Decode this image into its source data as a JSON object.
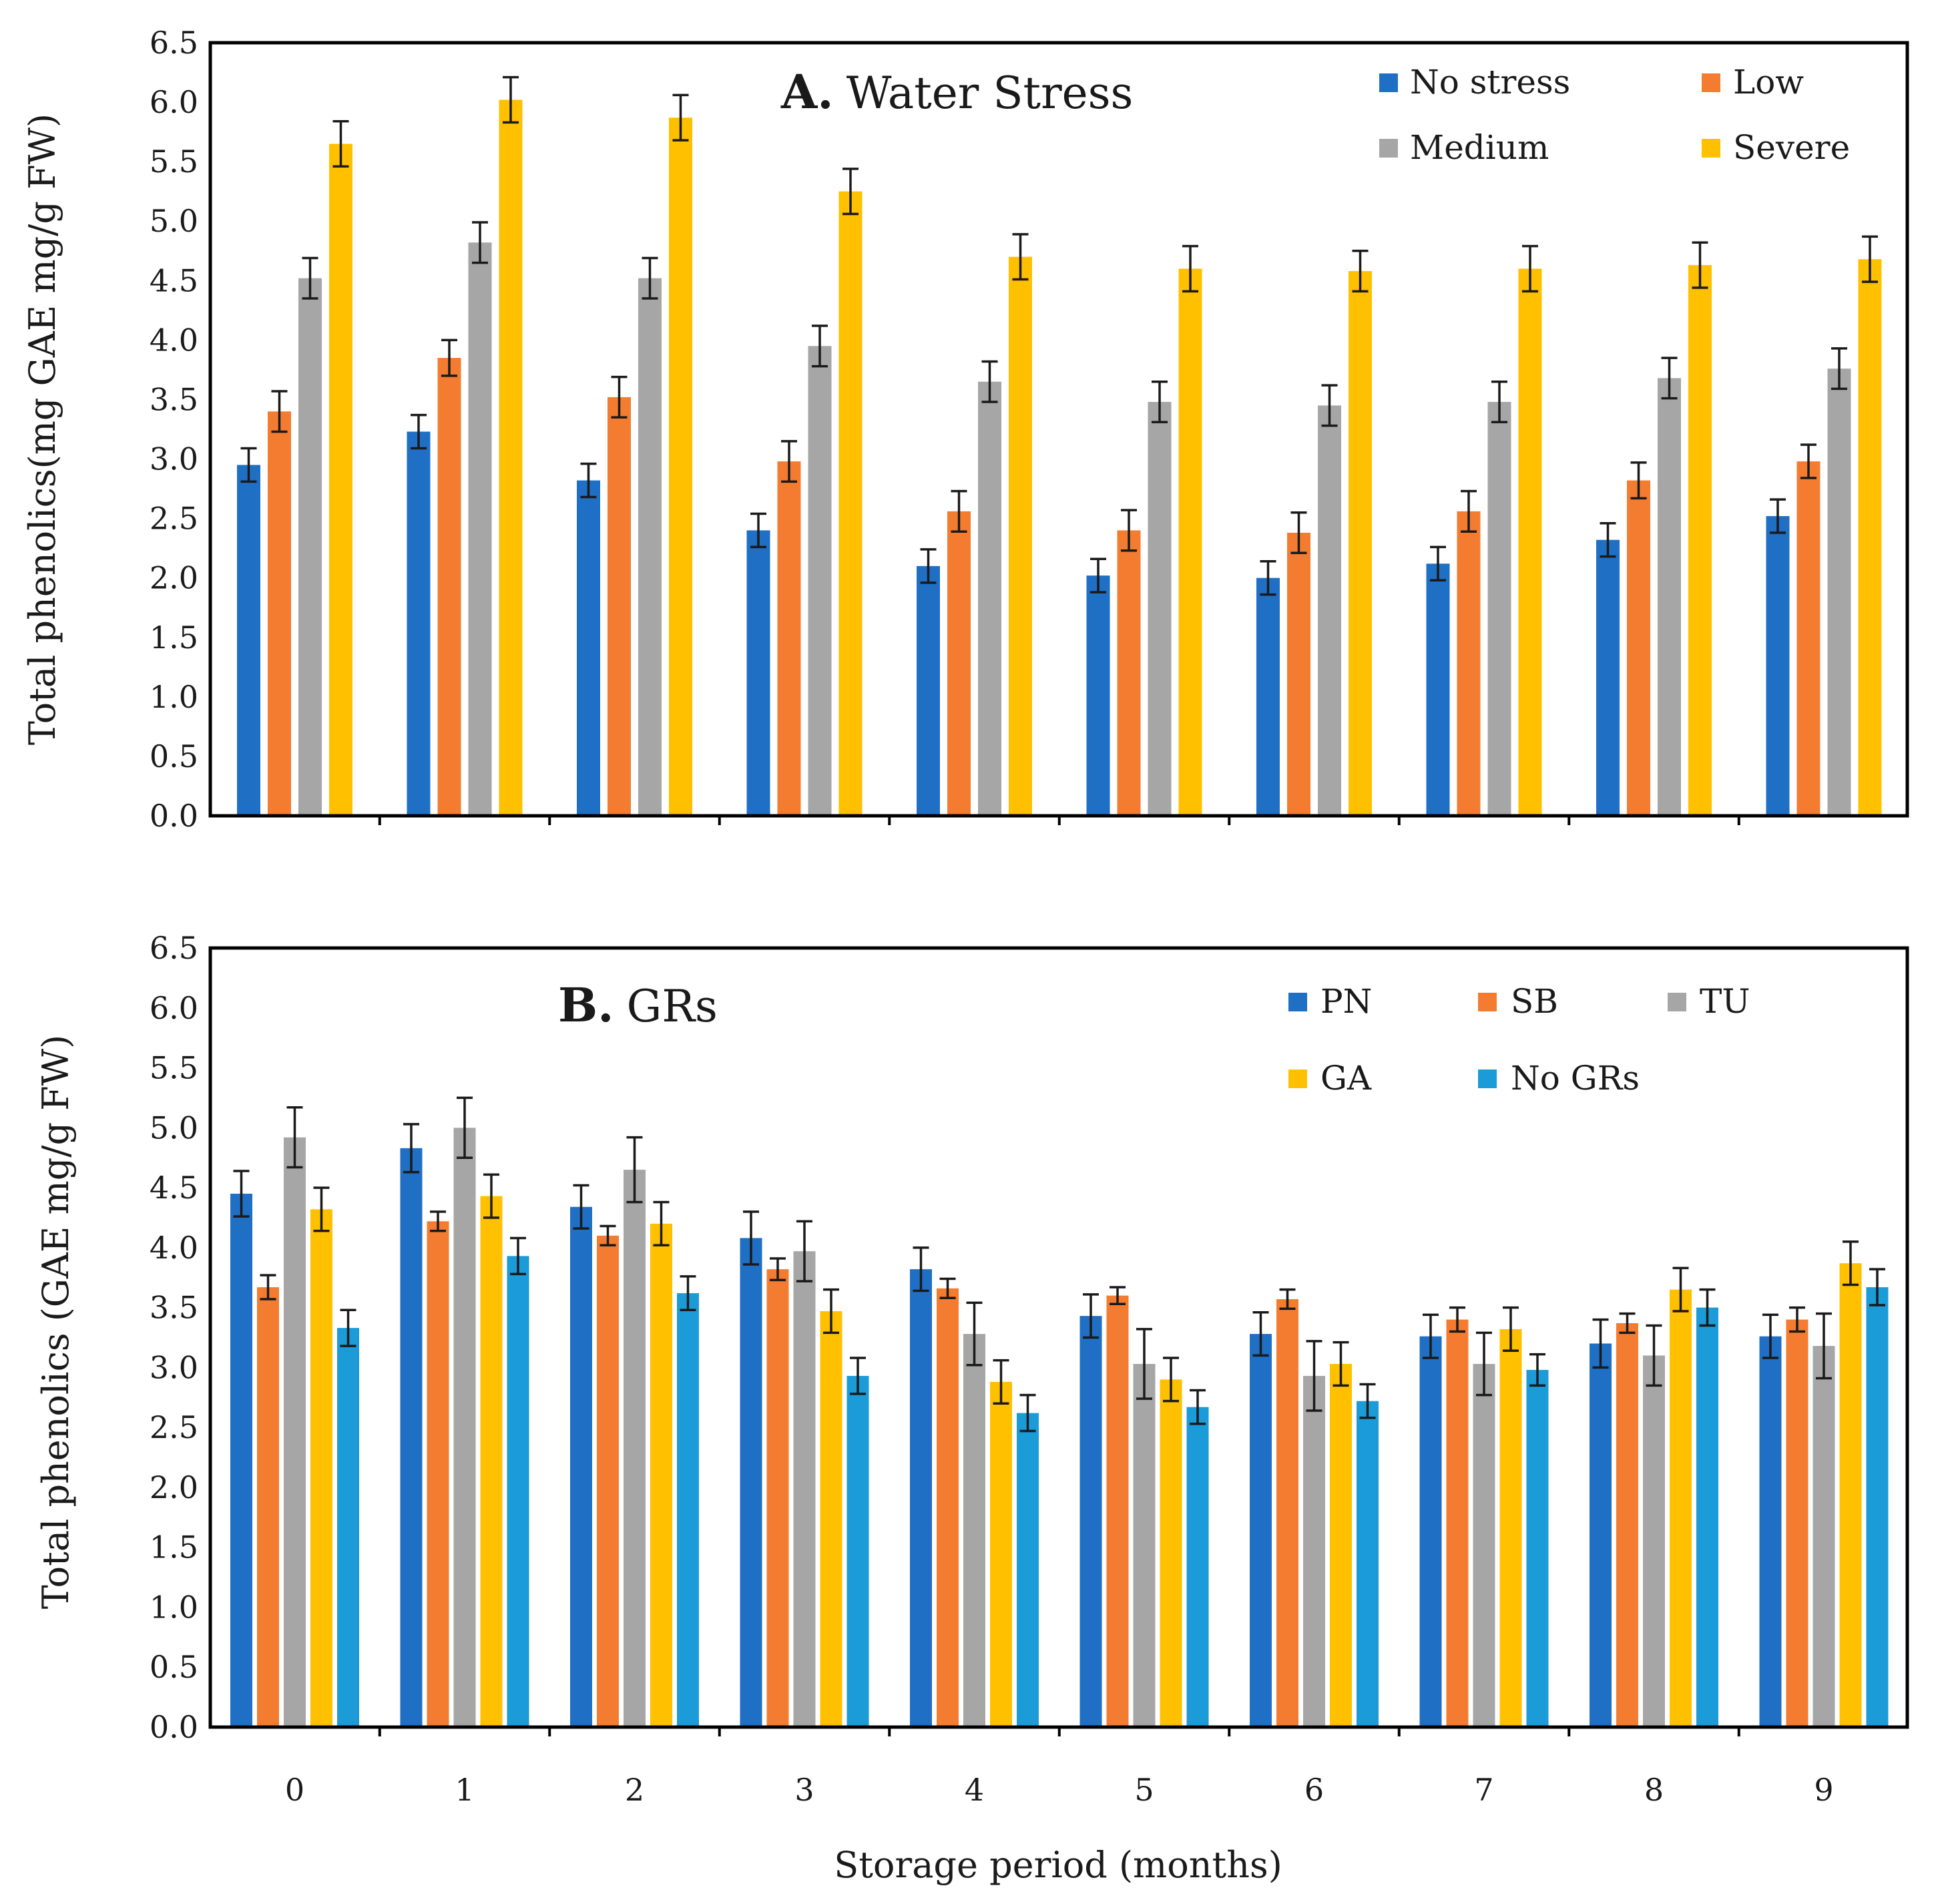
{
  "colors": {
    "No stress": "#1F6FC5",
    "Low": "#F47C30",
    "Medium": "#A6A6A6",
    "Severe": "#FFC000",
    "PN": "#1F6FC5",
    "SB": "#F47C30",
    "TU": "#A6A6A6",
    "GA": "#FFC000",
    "No GRs": "#1B9BD8"
  },
  "chart_data": [
    {
      "type": "bar",
      "panel_letter": "A.",
      "title": "Water Stress",
      "ylabel": "Total phenolics(mg GAE mg/g FW)",
      "xlabel": "",
      "ylim": [
        0,
        6.5
      ],
      "ytick_step": 0.5,
      "yticks": [
        "0.0",
        "0.5",
        "1.0",
        "1.5",
        "2.0",
        "2.5",
        "3.0",
        "3.5",
        "4.0",
        "4.5",
        "5.0",
        "5.5",
        "6.0",
        "6.5"
      ],
      "categories": [
        "0",
        "1",
        "2",
        "3",
        "4",
        "5",
        "6",
        "7",
        "8",
        "9"
      ],
      "show_x_tick_labels": false,
      "legend_position": "top-right",
      "legend_columns": 2,
      "series": [
        {
          "name": "No stress",
          "values": [
            2.95,
            3.23,
            2.82,
            2.4,
            2.1,
            2.02,
            2.0,
            2.12,
            2.32,
            2.52
          ],
          "errors": [
            0.14,
            0.14,
            0.14,
            0.14,
            0.14,
            0.14,
            0.14,
            0.14,
            0.14,
            0.14
          ]
        },
        {
          "name": "Low",
          "values": [
            3.4,
            3.85,
            3.52,
            2.98,
            2.56,
            2.4,
            2.38,
            2.56,
            2.82,
            2.98
          ],
          "errors": [
            0.17,
            0.15,
            0.17,
            0.17,
            0.17,
            0.17,
            0.17,
            0.17,
            0.15,
            0.14
          ]
        },
        {
          "name": "Medium",
          "values": [
            4.52,
            4.82,
            4.52,
            3.95,
            3.65,
            3.48,
            3.45,
            3.48,
            3.68,
            3.76
          ],
          "errors": [
            0.17,
            0.17,
            0.17,
            0.17,
            0.17,
            0.17,
            0.17,
            0.17,
            0.17,
            0.17
          ]
        },
        {
          "name": "Severe",
          "values": [
            5.65,
            6.02,
            5.87,
            5.25,
            4.7,
            4.6,
            4.58,
            4.6,
            4.63,
            4.68
          ],
          "errors": [
            0.19,
            0.19,
            0.19,
            0.19,
            0.19,
            0.19,
            0.17,
            0.19,
            0.19,
            0.19
          ]
        }
      ]
    },
    {
      "type": "bar",
      "panel_letter": "B.",
      "title": "GRs",
      "ylabel": "Total phenolics (GAE mg/g FW)",
      "xlabel": "Storage period (months)",
      "ylim": [
        0,
        6.5
      ],
      "ytick_step": 0.5,
      "yticks": [
        "0.0",
        "0.5",
        "1.0",
        "1.5",
        "2.0",
        "2.5",
        "3.0",
        "3.5",
        "4.0",
        "4.5",
        "5.0",
        "5.5",
        "6.0",
        "6.5"
      ],
      "categories": [
        "0",
        "1",
        "2",
        "3",
        "4",
        "5",
        "6",
        "7",
        "8",
        "9"
      ],
      "show_x_tick_labels": true,
      "legend_position": "top-right",
      "legend_columns": 3,
      "series": [
        {
          "name": "PN",
          "values": [
            4.45,
            4.83,
            4.34,
            4.08,
            3.82,
            3.43,
            3.28,
            3.26,
            3.2,
            3.26
          ],
          "errors": [
            0.19,
            0.2,
            0.18,
            0.22,
            0.18,
            0.18,
            0.18,
            0.18,
            0.2,
            0.18
          ]
        },
        {
          "name": "SB",
          "values": [
            3.67,
            4.22,
            4.1,
            3.82,
            3.66,
            3.6,
            3.57,
            3.4,
            3.37,
            3.4
          ],
          "errors": [
            0.1,
            0.08,
            0.08,
            0.09,
            0.08,
            0.07,
            0.08,
            0.1,
            0.08,
            0.1
          ]
        },
        {
          "name": "TU",
          "values": [
            4.92,
            5.0,
            4.65,
            3.97,
            3.28,
            3.03,
            2.93,
            3.03,
            3.1,
            3.18
          ],
          "errors": [
            0.25,
            0.25,
            0.27,
            0.25,
            0.26,
            0.29,
            0.29,
            0.26,
            0.25,
            0.27
          ]
        },
        {
          "name": "GA",
          "values": [
            4.32,
            4.43,
            4.2,
            3.47,
            2.88,
            2.9,
            3.03,
            3.32,
            3.65,
            3.87
          ],
          "errors": [
            0.18,
            0.18,
            0.18,
            0.18,
            0.18,
            0.18,
            0.18,
            0.18,
            0.18,
            0.18
          ]
        },
        {
          "name": "No GRs",
          "values": [
            3.33,
            3.93,
            3.62,
            2.93,
            2.62,
            2.67,
            2.72,
            2.98,
            3.5,
            3.67
          ],
          "errors": [
            0.15,
            0.15,
            0.14,
            0.15,
            0.15,
            0.14,
            0.14,
            0.13,
            0.15,
            0.15
          ]
        }
      ]
    }
  ]
}
